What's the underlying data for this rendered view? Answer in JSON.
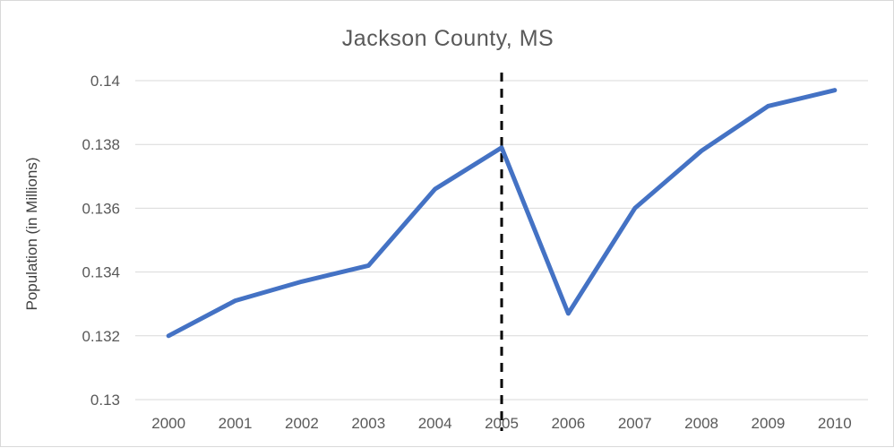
{
  "chart_data": {
    "type": "line",
    "title": "Jackson County, MS",
    "xlabel": "",
    "ylabel": "Population (in Millions)",
    "categories": [
      "2000",
      "2001",
      "2002",
      "2003",
      "2004",
      "2005",
      "2006",
      "2007",
      "2008",
      "2009",
      "2010"
    ],
    "series": [
      {
        "values": [
          0.132,
          0.1331,
          0.1337,
          0.1342,
          0.1366,
          0.1379,
          0.1327,
          0.136,
          0.1378,
          0.1392,
          0.1397
        ],
        "color": "#4472c4"
      }
    ],
    "ylim": [
      0.13,
      0.14
    ],
    "yticks": [
      "0.13",
      "0.132",
      "0.134",
      "0.136",
      "0.138",
      "0.14"
    ],
    "grid": true,
    "marker_line": {
      "x": "2005",
      "style": "dashed",
      "color": "#000000"
    },
    "colors": {
      "series": "#4472c4",
      "grid": "#d9d9d9",
      "text": "#595959"
    }
  }
}
